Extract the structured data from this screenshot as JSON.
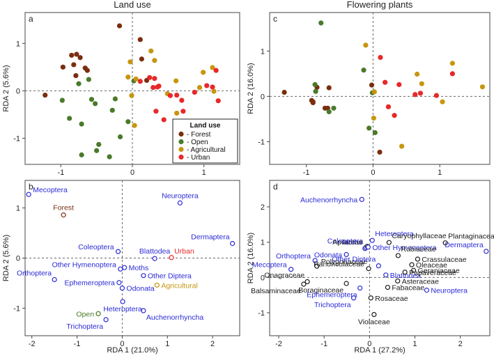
{
  "figure": {
    "colors": {
      "forest": "#7a2e0e",
      "open": "#4a7a2a",
      "agricultural": "#c7960f",
      "urban": "#e8282a",
      "blue": "#2a2ad6",
      "black": "#1a1a1a"
    }
  },
  "chart_data": [
    {
      "id": "a",
      "panel_label": "a",
      "title": "Land use",
      "type": "scatter",
      "xlabel": "",
      "ylabel": "RDA 2 (5.6%)",
      "xlim": [
        -1.5,
        1.5
      ],
      "ylim": [
        -1.55,
        1.65
      ],
      "xticks": [
        "-1",
        "0",
        "1"
      ],
      "yticks": [
        "-1",
        "0",
        "1"
      ],
      "legend": {
        "title": "Land use",
        "placement": "bottom-right",
        "entries": [
          "- Forest",
          "- Open",
          "- Agricultural",
          "- Urban"
        ]
      },
      "series": [
        {
          "name": "Forest",
          "color_key": "forest",
          "points": [
            [
              -1.22,
              -0.09
            ],
            [
              -0.97,
              0.5
            ],
            [
              -0.85,
              0.75
            ],
            [
              -0.79,
              0.32
            ],
            [
              -0.78,
              0.77
            ],
            [
              -0.73,
              0.7
            ],
            [
              -0.66,
              0.48
            ],
            [
              -0.63,
              0.43
            ],
            [
              -0.18,
              1.37
            ],
            [
              0.11,
              1.08
            ],
            [
              0.13,
              0.67
            ],
            [
              0.2,
              0.22
            ],
            [
              -0.82,
              0.55
            ]
          ]
        },
        {
          "name": "Open",
          "color_key": "open",
          "points": [
            [
              -0.98,
              -0.2
            ],
            [
              -0.88,
              -0.58
            ],
            [
              -0.75,
              0.15
            ],
            [
              -0.71,
              -0.7
            ],
            [
              -0.61,
              0.24
            ],
            [
              -0.57,
              -0.18
            ],
            [
              -0.52,
              -0.27
            ],
            [
              -0.5,
              -1.26
            ],
            [
              -0.47,
              -1.13
            ],
            [
              -0.32,
              -1.39
            ],
            [
              -0.28,
              -0.41
            ],
            [
              -0.24,
              -0.17
            ],
            [
              -0.17,
              -0.97
            ],
            [
              -0.06,
              -0.65
            ],
            [
              0.02,
              0.21
            ],
            [
              -0.71,
              -1.35
            ]
          ]
        },
        {
          "name": "Agricultural",
          "color_key": "agricultural",
          "points": [
            [
              -0.06,
              0.29
            ],
            [
              -0.03,
              0.61
            ],
            [
              -0.01,
              -0.1
            ],
            [
              0.05,
              0.25
            ],
            [
              0.03,
              -0.73
            ],
            [
              0.26,
              0.84
            ],
            [
              0.31,
              0.64
            ],
            [
              0.49,
              -0.06
            ],
            [
              0.61,
              0.21
            ],
            [
              0.62,
              -0.47
            ],
            [
              0.94,
              0.07
            ],
            [
              0.99,
              0.39
            ],
            [
              1.12,
              0.49
            ],
            [
              1.14,
              -0.01
            ]
          ]
        },
        {
          "name": "Urban",
          "color_key": "urban",
          "points": [
            [
              0.11,
              0.2
            ],
            [
              0.24,
              0.28
            ],
            [
              0.31,
              0.26
            ],
            [
              0.29,
              0.07
            ],
            [
              0.33,
              -0.43
            ],
            [
              0.35,
              0.08
            ],
            [
              0.44,
              -0.61
            ],
            [
              0.53,
              -0.1
            ],
            [
              0.62,
              -0.09
            ],
            [
              0.69,
              -0.2
            ],
            [
              0.71,
              -0.43
            ],
            [
              0.87,
              -0.03
            ],
            [
              1.04,
              0.11
            ],
            [
              1.12,
              0.08
            ],
            [
              1.17,
              0.43
            ],
            [
              1.2,
              -0.21
            ],
            [
              0.37,
              0.1
            ]
          ]
        }
      ]
    },
    {
      "id": "c",
      "panel_label": "c",
      "title": "Flowering plants",
      "type": "scatter",
      "xlabel": "",
      "ylabel": "RDA 2 (16.0%)",
      "xlim": [
        -1.55,
        1.75
      ],
      "ylim": [
        -1.5,
        1.85
      ],
      "xticks": [
        "-1",
        "0",
        "1"
      ],
      "yticks": [
        "-1",
        "0",
        "1"
      ],
      "series": [
        {
          "name": "Forest",
          "color_key": "forest",
          "points": [
            [
              -1.33,
              0.09
            ],
            [
              -0.92,
              -0.09
            ],
            [
              -0.9,
              -0.14
            ],
            [
              -0.84,
              0.2
            ],
            [
              -0.72,
              -0.26
            ],
            [
              -0.68,
              -0.26
            ],
            [
              -0.66,
              0.19
            ],
            [
              -0.02,
              0.25
            ],
            [
              0.1,
              -1.23
            ],
            [
              -0.9,
              -0.12
            ]
          ]
        },
        {
          "name": "Open",
          "color_key": "open",
          "points": [
            [
              -0.87,
              0.26
            ],
            [
              -0.86,
              0.11
            ],
            [
              -0.66,
              -0.34
            ],
            [
              -0.59,
              -0.26
            ],
            [
              -0.78,
              1.62
            ],
            [
              -0.14,
              0.58
            ],
            [
              -0.06,
              -0.7
            ],
            [
              0.03,
              -0.8
            ],
            [
              -0.01,
              0.08
            ]
          ]
        },
        {
          "name": "Agricultural",
          "color_key": "agricultural",
          "points": [
            [
              -0.11,
              1.13
            ],
            [
              0.01,
              -0.48
            ],
            [
              0.02,
              0.1
            ],
            [
              0.43,
              -1.1
            ],
            [
              0.66,
              0.49
            ],
            [
              0.73,
              0.28
            ],
            [
              1.04,
              -0.12
            ],
            [
              1.19,
              0.73
            ],
            [
              1.64,
              0.21
            ]
          ]
        },
        {
          "name": "Urban",
          "color_key": "urban",
          "points": [
            [
              0.11,
              0.86
            ],
            [
              0.23,
              -0.23
            ],
            [
              0.32,
              -0.42
            ],
            [
              0.39,
              0.26
            ],
            [
              0.63,
              0.04
            ],
            [
              0.71,
              0.07
            ],
            [
              0.95,
              0.02
            ],
            [
              1.19,
              0.5
            ],
            [
              0.18,
              0.31
            ]
          ]
        }
      ]
    },
    {
      "id": "b",
      "panel_label": "b",
      "type": "scatter",
      "xlabel": "RDA 1 (21.0%)",
      "ylabel": "RDA 2 (5.6%)",
      "xlim": [
        -2.15,
        2.6
      ],
      "ylim": [
        -1.55,
        1.55
      ],
      "xticks": [
        "-2",
        "-1",
        "0",
        "1",
        "2"
      ],
      "yticks": [
        "-1",
        "0",
        "1"
      ],
      "points": [
        {
          "label": "Mecoptera",
          "x": -2.07,
          "y": 1.27,
          "color_key": "blue",
          "anchor": "right-up"
        },
        {
          "label": "Forest",
          "x": -1.3,
          "y": 0.86,
          "color_key": "forest",
          "anchor": "above"
        },
        {
          "label": "Neuroptera",
          "x": 1.28,
          "y": 1.1,
          "color_key": "blue",
          "anchor": "above"
        },
        {
          "label": "Dermaptera",
          "x": 2.44,
          "y": 0.29,
          "color_key": "blue",
          "anchor": "above-left"
        },
        {
          "label": "Coleoptera",
          "x": -0.09,
          "y": 0.13,
          "color_key": "blue",
          "anchor": "left-up"
        },
        {
          "label": "Blattodea",
          "x": 0.72,
          "y": -0.01,
          "color_key": "blue",
          "anchor": "above"
        },
        {
          "label": "Urban",
          "x": 1.09,
          "y": 0.01,
          "color_key": "urban",
          "anchor": "above-right"
        },
        {
          "label": "Other Hymenoptera",
          "x": -0.04,
          "y": -0.22,
          "color_key": "blue",
          "anchor": "left-up"
        },
        {
          "label": "Moths",
          "x": 0.05,
          "y": -0.19,
          "color_key": "blue",
          "anchor": "right"
        },
        {
          "label": "Orthoptera",
          "x": -1.5,
          "y": -0.43,
          "color_key": "blue",
          "anchor": "above-left"
        },
        {
          "label": "Other Diptera",
          "x": 0.47,
          "y": -0.35,
          "color_key": "blue",
          "anchor": "right"
        },
        {
          "label": "Agricultural",
          "x": 0.77,
          "y": -0.54,
          "color_key": "agricultural",
          "anchor": "right"
        },
        {
          "label": "Ephemeroptera",
          "x": -0.07,
          "y": -0.49,
          "color_key": "blue",
          "anchor": "left"
        },
        {
          "label": "Odonata",
          "x": 0.0,
          "y": -0.6,
          "color_key": "blue",
          "anchor": "right"
        },
        {
          "label": "Heteroptera",
          "x": 0.01,
          "y": -0.87,
          "color_key": "blue",
          "anchor": "below"
        },
        {
          "label": "Auchenorrhyncha",
          "x": 0.47,
          "y": -1.05,
          "color_key": "blue",
          "anchor": "below-right"
        },
        {
          "label": "Open",
          "x": -0.53,
          "y": -1.11,
          "color_key": "open",
          "anchor": "left"
        },
        {
          "label": "Trichoptera",
          "x": -0.36,
          "y": -1.23,
          "color_key": "blue",
          "anchor": "below-left"
        }
      ]
    },
    {
      "id": "d",
      "panel_label": "d",
      "type": "scatter",
      "xlabel": "RDA 1 (27.2%)",
      "ylabel": "RDA 2 (16.0%)",
      "xlim": [
        -2.2,
        2.65
      ],
      "ylim": [
        -1.65,
        2.75
      ],
      "xticks": [
        "-2",
        "-1",
        "0",
        "1",
        "2"
      ],
      "yticks": [
        "-1",
        "0",
        "1",
        "2"
      ],
      "points": [
        {
          "label": "Auchenorrhyncha",
          "x": -0.17,
          "y": 2.21,
          "color_key": "blue",
          "anchor": "left"
        },
        {
          "label": "Heteroptera",
          "x": 0.06,
          "y": 1.05,
          "color_key": "blue",
          "anchor": "above-right"
        },
        {
          "label": "Caryophyllaceae",
          "x": 0.43,
          "y": 0.99,
          "color_key": "black",
          "anchor": "above-right"
        },
        {
          "label": "Plantaginaceae",
          "x": 1.67,
          "y": 0.98,
          "color_key": "black",
          "anchor": "above-right"
        },
        {
          "label": "Moths",
          "x": -0.1,
          "y": 0.82,
          "color_key": "blue",
          "anchor": "above-left"
        },
        {
          "label": "Coleoptera",
          "x": -0.08,
          "y": 0.85,
          "color_key": "blue",
          "anchor": "above-left"
        },
        {
          "label": "Apiaceae",
          "x": -0.05,
          "y": 0.88,
          "color_key": "black",
          "anchor": "left-up"
        },
        {
          "label": "Other Hymenoptera",
          "x": -0.03,
          "y": 0.86,
          "color_key": "blue",
          "anchor": "right"
        },
        {
          "label": "Rubiaceae",
          "x": 0.63,
          "y": 0.62,
          "color_key": "black",
          "anchor": "above-right"
        },
        {
          "label": "Dermaptera",
          "x": 2.57,
          "y": 0.74,
          "color_key": "blue",
          "anchor": "above-left"
        },
        {
          "label": "Odonata",
          "x": -0.51,
          "y": 0.65,
          "color_key": "blue",
          "anchor": "left"
        },
        {
          "label": "Orthoptera",
          "x": -1.2,
          "y": 0.48,
          "color_key": "blue",
          "anchor": "left-up"
        },
        {
          "label": "Polygonaceae",
          "x": -1.16,
          "y": 0.32,
          "color_key": "black",
          "anchor": "right-up"
        },
        {
          "label": "Crassulaceae",
          "x": 1.06,
          "y": 0.52,
          "color_key": "black",
          "anchor": "right"
        },
        {
          "label": "Oleaceae",
          "x": 0.93,
          "y": 0.36,
          "color_key": "black",
          "anchor": "right"
        },
        {
          "label": "Geraniaceae",
          "x": 0.97,
          "y": 0.2,
          "color_key": "black",
          "anchor": "right"
        },
        {
          "label": "Other Diptera",
          "x": 0.2,
          "y": 0.33,
          "color_key": "blue",
          "anchor": "above-left"
        },
        {
          "label": "Ranunculaceae",
          "x": -0.02,
          "y": 0.25,
          "color_key": "black",
          "anchor": "left-up"
        },
        {
          "label": "Mecoptera",
          "x": -1.73,
          "y": 0.23,
          "color_key": "blue",
          "anchor": "left-up"
        },
        {
          "label": "Onagraceae",
          "x": -1.37,
          "y": -0.12,
          "color_key": "black",
          "anchor": "above-left"
        },
        {
          "label": "Blattodea",
          "x": 0.36,
          "y": 0.07,
          "color_key": "blue",
          "anchor": "right"
        },
        {
          "label": "Papaveraceae",
          "x": 0.78,
          "y": 0.15,
          "color_key": "black",
          "anchor": "right"
        },
        {
          "label": "Boraginaceae",
          "x": -0.51,
          "y": -0.17,
          "color_key": "black",
          "anchor": "below-left"
        },
        {
          "label": "Balsaminaceae",
          "x": -1.45,
          "y": -0.19,
          "color_key": "black",
          "anchor": "below-left"
        },
        {
          "label": "Asteraceae",
          "x": 0.62,
          "y": -0.1,
          "color_key": "black",
          "anchor": "right"
        },
        {
          "label": "Fabaceae",
          "x": 0.4,
          "y": -0.28,
          "color_key": "black",
          "anchor": "right"
        },
        {
          "label": "Ephemeroptera",
          "x": -0.21,
          "y": -0.3,
          "color_key": "blue",
          "anchor": "below-left"
        },
        {
          "label": "Neuroptera",
          "x": 1.26,
          "y": -0.36,
          "color_key": "blue",
          "anchor": "right"
        },
        {
          "label": "Rosaceae",
          "x": 0.03,
          "y": -0.58,
          "color_key": "black",
          "anchor": "right"
        },
        {
          "label": "Trichoptera",
          "x": -0.35,
          "y": -0.58,
          "color_key": "blue",
          "anchor": "below-left"
        },
        {
          "label": "Violaceae",
          "x": 0.1,
          "y": -1.05,
          "color_key": "black",
          "anchor": "below"
        }
      ]
    }
  ]
}
